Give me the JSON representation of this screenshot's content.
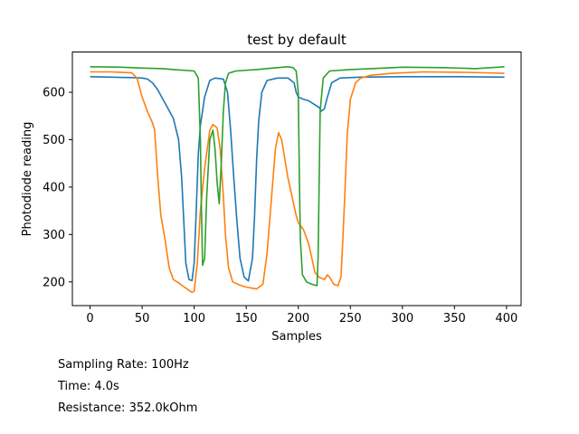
{
  "chart_data": {
    "type": "line",
    "title": "test by default",
    "xlabel": "Samples",
    "ylabel": "Photodiode reading",
    "xlim": [
      -17,
      414
    ],
    "ylim": [
      150,
      685
    ],
    "xticks": [
      0,
      50,
      100,
      150,
      200,
      250,
      300,
      350,
      400
    ],
    "yticks": [
      200,
      300,
      400,
      500,
      600
    ],
    "grid": false,
    "legend": "none",
    "series": [
      {
        "color": "#1f77b4",
        "points": [
          [
            0,
            633
          ],
          [
            20,
            632
          ],
          [
            40,
            631
          ],
          [
            50,
            630
          ],
          [
            55,
            628
          ],
          [
            60,
            620
          ],
          [
            65,
            605
          ],
          [
            70,
            585
          ],
          [
            75,
            565
          ],
          [
            80,
            545
          ],
          [
            85,
            500
          ],
          [
            88,
            420
          ],
          [
            90,
            330
          ],
          [
            92,
            240
          ],
          [
            95,
            205
          ],
          [
            98,
            203
          ],
          [
            100,
            240
          ],
          [
            102,
            350
          ],
          [
            104,
            470
          ],
          [
            106,
            530
          ],
          [
            110,
            590
          ],
          [
            115,
            625
          ],
          [
            120,
            630
          ],
          [
            128,
            628
          ],
          [
            132,
            600
          ],
          [
            135,
            520
          ],
          [
            138,
            420
          ],
          [
            141,
            330
          ],
          [
            144,
            250
          ],
          [
            148,
            210
          ],
          [
            152,
            202
          ],
          [
            156,
            250
          ],
          [
            158,
            340
          ],
          [
            160,
            460
          ],
          [
            162,
            540
          ],
          [
            165,
            600
          ],
          [
            170,
            625
          ],
          [
            180,
            630
          ],
          [
            190,
            630
          ],
          [
            196,
            620
          ],
          [
            198,
            600
          ],
          [
            200,
            590
          ],
          [
            205,
            585
          ],
          [
            210,
            582
          ],
          [
            215,
            575
          ],
          [
            220,
            568
          ],
          [
            222,
            560
          ],
          [
            225,
            565
          ],
          [
            228,
            590
          ],
          [
            232,
            620
          ],
          [
            240,
            630
          ],
          [
            260,
            632
          ],
          [
            300,
            633
          ],
          [
            350,
            633
          ],
          [
            398,
            632
          ]
        ]
      },
      {
        "color": "#ff7f0e",
        "points": [
          [
            0,
            643
          ],
          [
            20,
            643
          ],
          [
            40,
            641
          ],
          [
            45,
            630
          ],
          [
            50,
            590
          ],
          [
            55,
            560
          ],
          [
            60,
            535
          ],
          [
            62,
            520
          ],
          [
            65,
            420
          ],
          [
            68,
            340
          ],
          [
            72,
            290
          ],
          [
            76,
            230
          ],
          [
            80,
            205
          ],
          [
            85,
            198
          ],
          [
            90,
            190
          ],
          [
            95,
            182
          ],
          [
            98,
            178
          ],
          [
            100,
            180
          ],
          [
            103,
            240
          ],
          [
            106,
            350
          ],
          [
            110,
            440
          ],
          [
            115,
            520
          ],
          [
            118,
            532
          ],
          [
            122,
            525
          ],
          [
            125,
            480
          ],
          [
            128,
            380
          ],
          [
            130,
            300
          ],
          [
            133,
            230
          ],
          [
            137,
            200
          ],
          [
            142,
            195
          ],
          [
            148,
            190
          ],
          [
            155,
            187
          ],
          [
            160,
            185
          ],
          [
            166,
            195
          ],
          [
            170,
            260
          ],
          [
            174,
            370
          ],
          [
            178,
            480
          ],
          [
            181,
            515
          ],
          [
            184,
            500
          ],
          [
            187,
            460
          ],
          [
            190,
            420
          ],
          [
            194,
            380
          ],
          [
            198,
            340
          ],
          [
            200,
            325
          ],
          [
            205,
            310
          ],
          [
            210,
            280
          ],
          [
            213,
            250
          ],
          [
            216,
            220
          ],
          [
            220,
            210
          ],
          [
            225,
            205
          ],
          [
            228,
            215
          ],
          [
            230,
            210
          ],
          [
            234,
            195
          ],
          [
            238,
            192
          ],
          [
            241,
            210
          ],
          [
            243,
            300
          ],
          [
            245,
            400
          ],
          [
            247,
            510
          ],
          [
            250,
            585
          ],
          [
            255,
            620
          ],
          [
            260,
            630
          ],
          [
            270,
            636
          ],
          [
            290,
            640
          ],
          [
            320,
            643
          ],
          [
            360,
            642
          ],
          [
            398,
            640
          ]
        ]
      },
      {
        "color": "#2ca02c",
        "points": [
          [
            0,
            654
          ],
          [
            30,
            653
          ],
          [
            50,
            651
          ],
          [
            70,
            650
          ],
          [
            80,
            648
          ],
          [
            100,
            645
          ],
          [
            104,
            630
          ],
          [
            106,
            500
          ],
          [
            107,
            350
          ],
          [
            108,
            235
          ],
          [
            110,
            250
          ],
          [
            112,
            380
          ],
          [
            115,
            500
          ],
          [
            118,
            520
          ],
          [
            120,
            480
          ],
          [
            122,
            410
          ],
          [
            124,
            365
          ],
          [
            126,
            450
          ],
          [
            128,
            560
          ],
          [
            130,
            620
          ],
          [
            133,
            640
          ],
          [
            140,
            645
          ],
          [
            160,
            648
          ],
          [
            180,
            652
          ],
          [
            190,
            654
          ],
          [
            195,
            652
          ],
          [
            198,
            645
          ],
          [
            200,
            600
          ],
          [
            201,
            420
          ],
          [
            202,
            290
          ],
          [
            204,
            215
          ],
          [
            208,
            200
          ],
          [
            213,
            195
          ],
          [
            218,
            192
          ],
          [
            219,
            250
          ],
          [
            220,
            400
          ],
          [
            221,
            560
          ],
          [
            224,
            630
          ],
          [
            230,
            645
          ],
          [
            250,
            648
          ],
          [
            270,
            650
          ],
          [
            300,
            653
          ],
          [
            340,
            652
          ],
          [
            370,
            650
          ],
          [
            398,
            654
          ]
        ]
      }
    ]
  },
  "info": {
    "sampling_rate": "Sampling Rate: 100Hz",
    "time": "Time: 4.0s",
    "resistance": "Resistance: 352.0kOhm"
  }
}
